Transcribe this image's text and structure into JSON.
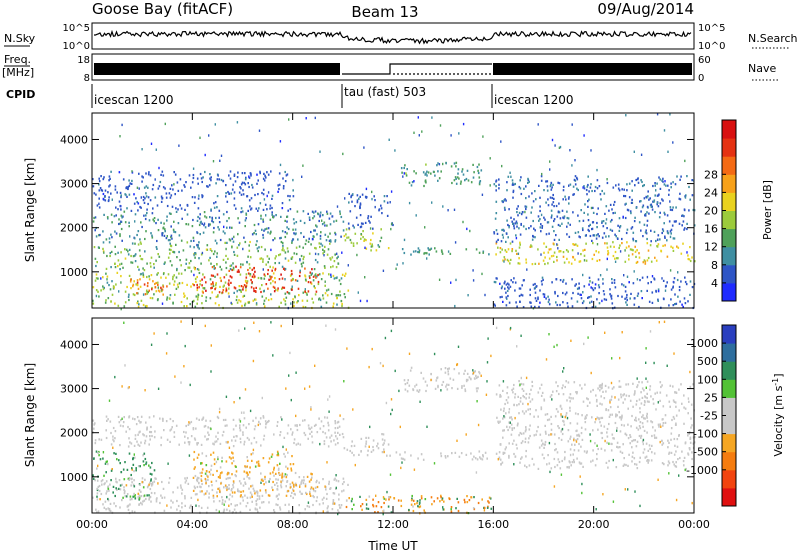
{
  "header": {
    "station": "Goose Bay (fitACF)",
    "beam": "Beam 13",
    "date": "09/Aug/2014"
  },
  "summary_panels": {
    "nsky_label": "N.Sky",
    "nsky_ticks": [
      "10^5",
      "10^0"
    ],
    "nsearch_label": "N.Search",
    "nsearch_ticks": [
      "10^5",
      "10^0"
    ],
    "freq_label": "Freq.",
    "freq_unit": "[MHz]",
    "freq_ticks": [
      "18",
      "8"
    ],
    "nave_label": "Nave",
    "nave_ticks": [
      "60",
      "0"
    ],
    "cpid_label": "CPID",
    "cpid_segments": [
      {
        "label": "icescan 1200",
        "start_hour": 0,
        "end_hour": 10
      },
      {
        "label": "tau (fast) 503",
        "start_hour": 10,
        "end_hour": 16
      },
      {
        "label": "icescan 1200",
        "start_hour": 16,
        "end_hour": 24
      }
    ]
  },
  "chart_data": [
    {
      "type": "heatmap",
      "quantity": "power",
      "ylabel": "Slant Range [km]",
      "xlabel": "",
      "x_ticks": [
        "00:00",
        "04:00",
        "08:00",
        "12:00",
        "16:00",
        "20:00",
        "00:00"
      ],
      "x_tick_hours": [
        0,
        4,
        8,
        12,
        16,
        20,
        24
      ],
      "xlim_hours": [
        0,
        24
      ],
      "y_ticks": [
        1000,
        2000,
        3000,
        4000
      ],
      "ylim": [
        180,
        4600
      ],
      "colorbar": {
        "label": "Power [dB]",
        "ticks": [
          4,
          8,
          12,
          16,
          20,
          24,
          28
        ],
        "range": [
          0,
          32
        ],
        "colors": [
          "#1f2bff",
          "#2e55c6",
          "#3f8fa2",
          "#4fa15a",
          "#9ccb3c",
          "#e9d21f",
          "#f7a11a",
          "#f46a14",
          "#e53212",
          "#d81010"
        ]
      },
      "regions": [
        {
          "t0": 0.0,
          "t1": 10.2,
          "r0": 200,
          "r1": 1000,
          "power": 14,
          "spread": 10
        },
        {
          "t0": 4.0,
          "t1": 9.0,
          "r0": 550,
          "r1": 1150,
          "power": 27,
          "spread": 5
        },
        {
          "t0": 1.5,
          "t1": 3.2,
          "r0": 500,
          "r1": 900,
          "power": 23,
          "spread": 6
        },
        {
          "t0": 0.0,
          "t1": 9.8,
          "r0": 1050,
          "r1": 1700,
          "power": 12,
          "spread": 9
        },
        {
          "t0": 0.0,
          "t1": 10.0,
          "r0": 1700,
          "r1": 2400,
          "power": 8,
          "spread": 7
        },
        {
          "t0": 0.0,
          "t1": 8.0,
          "r0": 2400,
          "r1": 3300,
          "power": 5,
          "spread": 4
        },
        {
          "t0": 10.0,
          "t1": 11.8,
          "r0": 1500,
          "r1": 2000,
          "power": 15,
          "spread": 6
        },
        {
          "t0": 11.8,
          "t1": 16.0,
          "r0": 1400,
          "r1": 1600,
          "power": 9,
          "spread": 5
        },
        {
          "t0": 12.3,
          "t1": 15.5,
          "r0": 2950,
          "r1": 3500,
          "power": 10,
          "spread": 6
        },
        {
          "t0": 10.2,
          "t1": 12.0,
          "r0": 2000,
          "r1": 2800,
          "power": 5,
          "spread": 3
        },
        {
          "t0": 16.0,
          "t1": 24.0,
          "r0": 1200,
          "r1": 1700,
          "power": 17,
          "spread": 7
        },
        {
          "t0": 16.0,
          "t1": 24.0,
          "r0": 1700,
          "r1": 3200,
          "power": 6,
          "spread": 4
        },
        {
          "t0": 16.0,
          "t1": 24.0,
          "r0": 200,
          "r1": 900,
          "power": 5,
          "spread": 4
        }
      ]
    },
    {
      "type": "heatmap",
      "quantity": "velocity",
      "ylabel": "Slant Range [km]",
      "xlabel": "Time UT",
      "x_ticks": [
        "00:00",
        "04:00",
        "08:00",
        "12:00",
        "16:00",
        "20:00",
        "00:00"
      ],
      "x_tick_hours": [
        0,
        4,
        8,
        12,
        16,
        20,
        24
      ],
      "xlim_hours": [
        0,
        24
      ],
      "y_ticks": [
        1000,
        2000,
        3000,
        4000
      ],
      "ylim": [
        180,
        4600
      ],
      "colorbar": {
        "label": "Velocity [m s",
        "label_sup": "-1",
        "label_end": "]",
        "ticks": [
          "1000",
          "500",
          "100",
          "25",
          "-25",
          "-100",
          "-500",
          "-1000"
        ],
        "colors": [
          "#2a3fbf",
          "#2e6e9e",
          "#2f8f5a",
          "#53c236",
          "#c8c8c8",
          "#c8c8c8",
          "#f5a623",
          "#f57c0f",
          "#f2440f",
          "#e01010"
        ]
      },
      "regions": [
        {
          "t0": 0.0,
          "t1": 10.2,
          "r0": 200,
          "r1": 1000,
          "vel": -20,
          "spread": 40
        },
        {
          "t0": 4.0,
          "t1": 9.0,
          "r0": 550,
          "r1": 1150,
          "vel": -80,
          "spread": 90
        },
        {
          "t0": 0.0,
          "t1": 2.5,
          "r0": 500,
          "r1": 1600,
          "vel": 150,
          "spread": 300
        },
        {
          "t0": 4.0,
          "t1": 8.0,
          "r0": 1000,
          "r1": 1600,
          "vel": -200,
          "spread": 300
        },
        {
          "t0": 0.0,
          "t1": 10.0,
          "r0": 1700,
          "r1": 2400,
          "vel": 0,
          "spread": 20
        },
        {
          "t0": 10.0,
          "t1": 11.8,
          "r0": 1500,
          "r1": 2000,
          "vel": 0,
          "spread": 20
        },
        {
          "t0": 11.8,
          "t1": 16.0,
          "r0": 1400,
          "r1": 1600,
          "vel": 0,
          "spread": 15
        },
        {
          "t0": 12.3,
          "t1": 15.5,
          "r0": 2950,
          "r1": 3500,
          "vel": 0,
          "spread": 15
        },
        {
          "t0": 16.0,
          "t1": 24.0,
          "r0": 1200,
          "r1": 1700,
          "vel": 0,
          "spread": 15
        },
        {
          "t0": 16.0,
          "t1": 24.0,
          "r0": 1700,
          "r1": 3200,
          "vel": 0,
          "spread": 20
        },
        {
          "t0": 10.0,
          "t1": 16.0,
          "r0": 200,
          "r1": 600,
          "vel": -300,
          "spread": 600
        }
      ]
    }
  ]
}
